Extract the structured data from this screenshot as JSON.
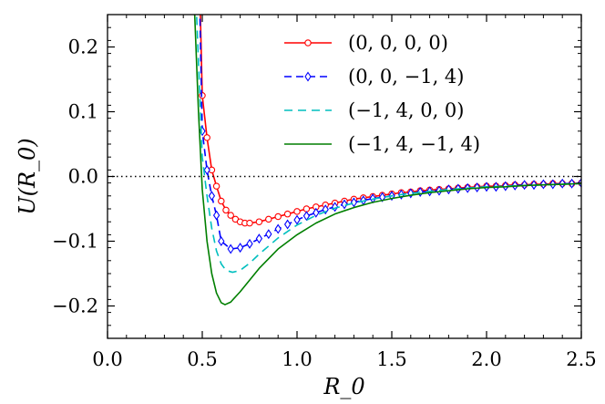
{
  "chart_data": {
    "type": "line",
    "title": "",
    "xlabel": "R_0",
    "ylabel": "U(R_0)",
    "xlim": [
      0.0,
      2.5
    ],
    "ylim": [
      -0.25,
      0.25
    ],
    "x_ticks": [
      0.0,
      0.5,
      1.0,
      1.5,
      2.0,
      2.5
    ],
    "x_tick_labels": [
      "0.0",
      "0.5",
      "1.0",
      "1.5",
      "2.0",
      "2.5"
    ],
    "y_ticks": [
      -0.2,
      -0.1,
      0.0,
      0.1,
      0.2
    ],
    "y_tick_labels": [
      "−0.2",
      "−0.1",
      "0.0",
      "0.1",
      "0.2"
    ],
    "reference_line": {
      "y": 0.0,
      "style": "dotted",
      "color": "#000000"
    },
    "legend_position": "top-right",
    "series": [
      {
        "name": "(0, 0, 0, 0)",
        "color": "#ff0000",
        "style": "solid",
        "marker": "circle",
        "minimum": [
          0.75,
          -0.072
        ],
        "scale": 1.4,
        "x": [
          0.5,
          0.525,
          0.55,
          0.575,
          0.6,
          0.625,
          0.65,
          0.675,
          0.7,
          0.725,
          0.75,
          0.8,
          0.85,
          0.9,
          0.95,
          1.0,
          1.05,
          1.1,
          1.15,
          1.2,
          1.25,
          1.3,
          1.35,
          1.4,
          1.45,
          1.5,
          1.55,
          1.6,
          1.65,
          1.7,
          1.75,
          1.8,
          1.85,
          1.9,
          1.95,
          2.0,
          2.05,
          2.1,
          2.15,
          2.2,
          2.25,
          2.3,
          2.35,
          2.4,
          2.45,
          2.5
        ],
        "y": [
          0.125,
          0.06,
          0.01,
          -0.015,
          -0.038,
          -0.052,
          -0.06,
          -0.066,
          -0.07,
          -0.072,
          -0.072,
          -0.07,
          -0.066,
          -0.062,
          -0.058,
          -0.054,
          -0.05,
          -0.047,
          -0.044,
          -0.041,
          -0.038,
          -0.035,
          -0.033,
          -0.031,
          -0.029,
          -0.027,
          -0.025,
          -0.024,
          -0.022,
          -0.021,
          -0.02,
          -0.019,
          -0.018,
          -0.017,
          -0.016,
          -0.015,
          -0.015,
          -0.014,
          -0.013,
          -0.013,
          -0.012,
          -0.012,
          -0.011,
          -0.011,
          -0.011,
          -0.01
        ]
      },
      {
        "name": "(0, 0, −1, 4)",
        "color": "#0000ff",
        "style": "dashed",
        "marker": "diamond",
        "minimum": [
          0.68,
          -0.112
        ],
        "scale": 1.05,
        "x": [
          0.5,
          0.525,
          0.55,
          0.575,
          0.6,
          0.65,
          0.7,
          0.75,
          0.8,
          0.85,
          0.9,
          0.95,
          1.0,
          1.05,
          1.1,
          1.15,
          1.2,
          1.25,
          1.3,
          1.35,
          1.4,
          1.45,
          1.5,
          1.55,
          1.6,
          1.65,
          1.7,
          1.75,
          1.8,
          1.85,
          1.9,
          1.95,
          2.0,
          2.05,
          2.1,
          2.15,
          2.2,
          2.25,
          2.3,
          2.35,
          2.4,
          2.45,
          2.5
        ],
        "y": [
          0.07,
          0.01,
          -0.03,
          -0.06,
          -0.1,
          -0.112,
          -0.11,
          -0.104,
          -0.096,
          -0.089,
          -0.081,
          -0.074,
          -0.067,
          -0.061,
          -0.056,
          -0.051,
          -0.047,
          -0.043,
          -0.04,
          -0.037,
          -0.034,
          -0.032,
          -0.03,
          -0.028,
          -0.026,
          -0.024,
          -0.023,
          -0.022,
          -0.02,
          -0.019,
          -0.018,
          -0.017,
          -0.016,
          -0.016,
          -0.015,
          -0.014,
          -0.013,
          -0.013,
          -0.012,
          -0.012,
          -0.011,
          -0.011,
          -0.01
        ]
      },
      {
        "name": "(−1, 4, 0, 0)",
        "color": "#00bfbf",
        "style": "dashed",
        "marker": "none",
        "minimum": [
          0.66,
          -0.148
        ],
        "scale": 0.88,
        "x": [
          0.47,
          0.5,
          0.525,
          0.55,
          0.575,
          0.6,
          0.625,
          0.66,
          0.7,
          0.75,
          0.8,
          0.9,
          1.0,
          1.1,
          1.2,
          1.3,
          1.4,
          1.5,
          1.6,
          1.7,
          1.8,
          1.9,
          2.0,
          2.1,
          2.2,
          2.3,
          2.4,
          2.5
        ],
        "y": [
          0.25,
          0.03,
          -0.03,
          -0.08,
          -0.115,
          -0.135,
          -0.145,
          -0.148,
          -0.145,
          -0.134,
          -0.12,
          -0.095,
          -0.075,
          -0.06,
          -0.049,
          -0.041,
          -0.035,
          -0.03,
          -0.026,
          -0.023,
          -0.02,
          -0.018,
          -0.016,
          -0.015,
          -0.014,
          -0.013,
          -0.012,
          -0.011
        ]
      },
      {
        "name": "(−1, 4, −1, 4)",
        "color": "#007f00",
        "style": "solid",
        "marker": "none",
        "minimum": [
          0.62,
          -0.198
        ],
        "scale": 0.78,
        "x": [
          0.46,
          0.48,
          0.5,
          0.525,
          0.55,
          0.575,
          0.6,
          0.62,
          0.65,
          0.7,
          0.75,
          0.8,
          0.9,
          1.0,
          1.1,
          1.2,
          1.3,
          1.4,
          1.5,
          1.6,
          1.7,
          1.8,
          1.9,
          2.0,
          2.1,
          2.2,
          2.3,
          2.4,
          2.5
        ],
        "y": [
          0.25,
          0.1,
          -0.02,
          -0.1,
          -0.15,
          -0.18,
          -0.195,
          -0.198,
          -0.194,
          -0.178,
          -0.16,
          -0.142,
          -0.112,
          -0.09,
          -0.072,
          -0.058,
          -0.048,
          -0.04,
          -0.034,
          -0.029,
          -0.025,
          -0.022,
          -0.019,
          -0.017,
          -0.016,
          -0.014,
          -0.013,
          -0.012,
          -0.011
        ]
      }
    ]
  }
}
